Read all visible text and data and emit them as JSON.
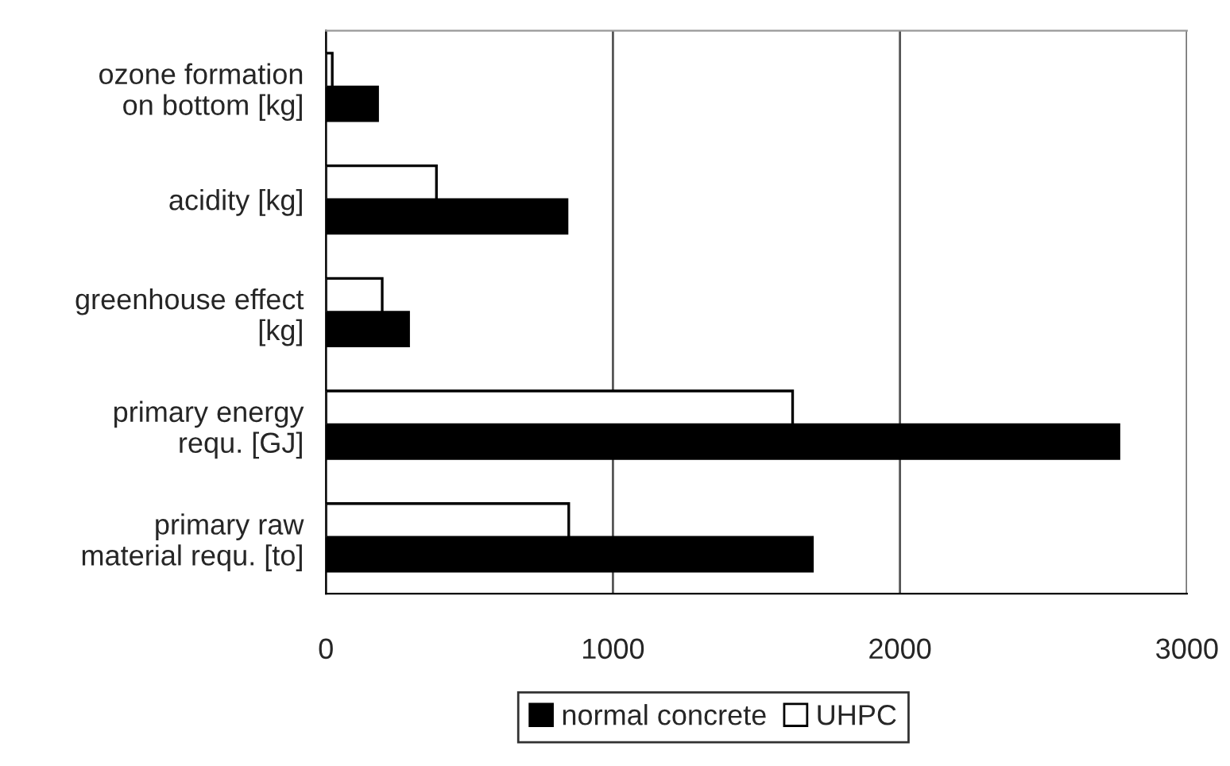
{
  "chart_data": {
    "type": "bar",
    "orientation": "horizontal",
    "categories": [
      "ozone formation\non bottom [kg]",
      "acidity [kg]",
      "greenhouse effect\n[kg]",
      "primary energy\nrequ. [GJ]",
      "primary raw\nmaterial requ. [to]"
    ],
    "series": [
      {
        "name": "normal concrete",
        "color": "#000000",
        "values": [
          180,
          840,
          288,
          2763,
          1695
        ]
      },
      {
        "name": "UHPC",
        "color": "#ffffff",
        "values": [
          22,
          385,
          196,
          1626,
          846
        ]
      }
    ],
    "xlim": [
      0,
      3000
    ],
    "xticks": [
      0,
      1000,
      2000,
      3000
    ],
    "grid": "x",
    "legend": "bottom"
  }
}
